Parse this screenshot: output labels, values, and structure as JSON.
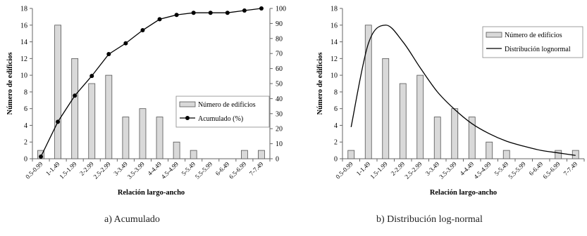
{
  "chart_data": [
    {
      "type": "bar",
      "caption": "a) Acumulado",
      "xlabel": "Relación largo-ancho",
      "ylabel": "Número de edificios",
      "ylim": [
        0,
        18
      ],
      "y2lim": [
        0,
        100
      ],
      "grid": false,
      "legend_position": "center-right",
      "categories": [
        "0.5-0.99",
        "1-1.49",
        "1.5-1.99",
        "2-2.99",
        "2.5-2.99",
        "3-3.49",
        "3.5-3.99",
        "4-4.49",
        "4.5-4.99",
        "5-5.49",
        "5.5-5.99",
        "6-6.49",
        "6.5-6.99",
        "7-7.49"
      ],
      "y_ticks": [
        "0",
        "2",
        "4",
        "6",
        "8",
        "10",
        "12",
        "14",
        "16",
        "18"
      ],
      "y2_ticks": [
        "0",
        "10",
        "20",
        "30",
        "40",
        "50",
        "60",
        "70",
        "80",
        "90",
        "100"
      ],
      "series": [
        {
          "name": "Número de edificios",
          "kind": "bar",
          "color": "#d9d9d9",
          "values": [
            1,
            16,
            12,
            9,
            10,
            5,
            6,
            5,
            2,
            1,
            0,
            0,
            1,
            1
          ]
        },
        {
          "name": "Acumulado (%)",
          "kind": "line-markers",
          "axis": "secondary",
          "color": "#000000",
          "values": [
            1.4,
            24.6,
            42.0,
            55.1,
            69.6,
            76.8,
            85.5,
            92.8,
            95.7,
            97.1,
            97.1,
            97.1,
            98.6,
            100
          ]
        }
      ]
    },
    {
      "type": "bar",
      "caption": "b) Distribución log-normal",
      "xlabel": "Relación largo-ancho",
      "ylabel": "Número de edificios",
      "ylim": [
        0,
        18
      ],
      "grid": false,
      "legend_position": "top-right",
      "categories": [
        "0.5-0.99",
        "1-1.49",
        "1.5-1.99",
        "2-2.99",
        "2.5-2.99",
        "3-3.49",
        "3.5-3.99",
        "4-4.49",
        "4.5-4.99",
        "5-5.49",
        "5.5-5.99",
        "6-6.49",
        "6.5-6.99",
        "7-7.49"
      ],
      "y_ticks": [
        "0",
        "2",
        "4",
        "6",
        "8",
        "10",
        "12",
        "14",
        "16",
        "18"
      ],
      "series": [
        {
          "name": "Número de edificios",
          "kind": "bar",
          "color": "#d9d9d9",
          "values": [
            1,
            16,
            12,
            9,
            10,
            5,
            6,
            5,
            2,
            1,
            0,
            0,
            1,
            1
          ]
        },
        {
          "name": "Distribución lognormal",
          "kind": "line",
          "color": "#000000",
          "values": [
            3.8,
            13.8,
            16.0,
            14.0,
            10.9,
            8.0,
            5.9,
            4.2,
            3.0,
            2.1,
            1.5,
            1.0,
            0.7,
            0.4
          ]
        }
      ]
    }
  ]
}
